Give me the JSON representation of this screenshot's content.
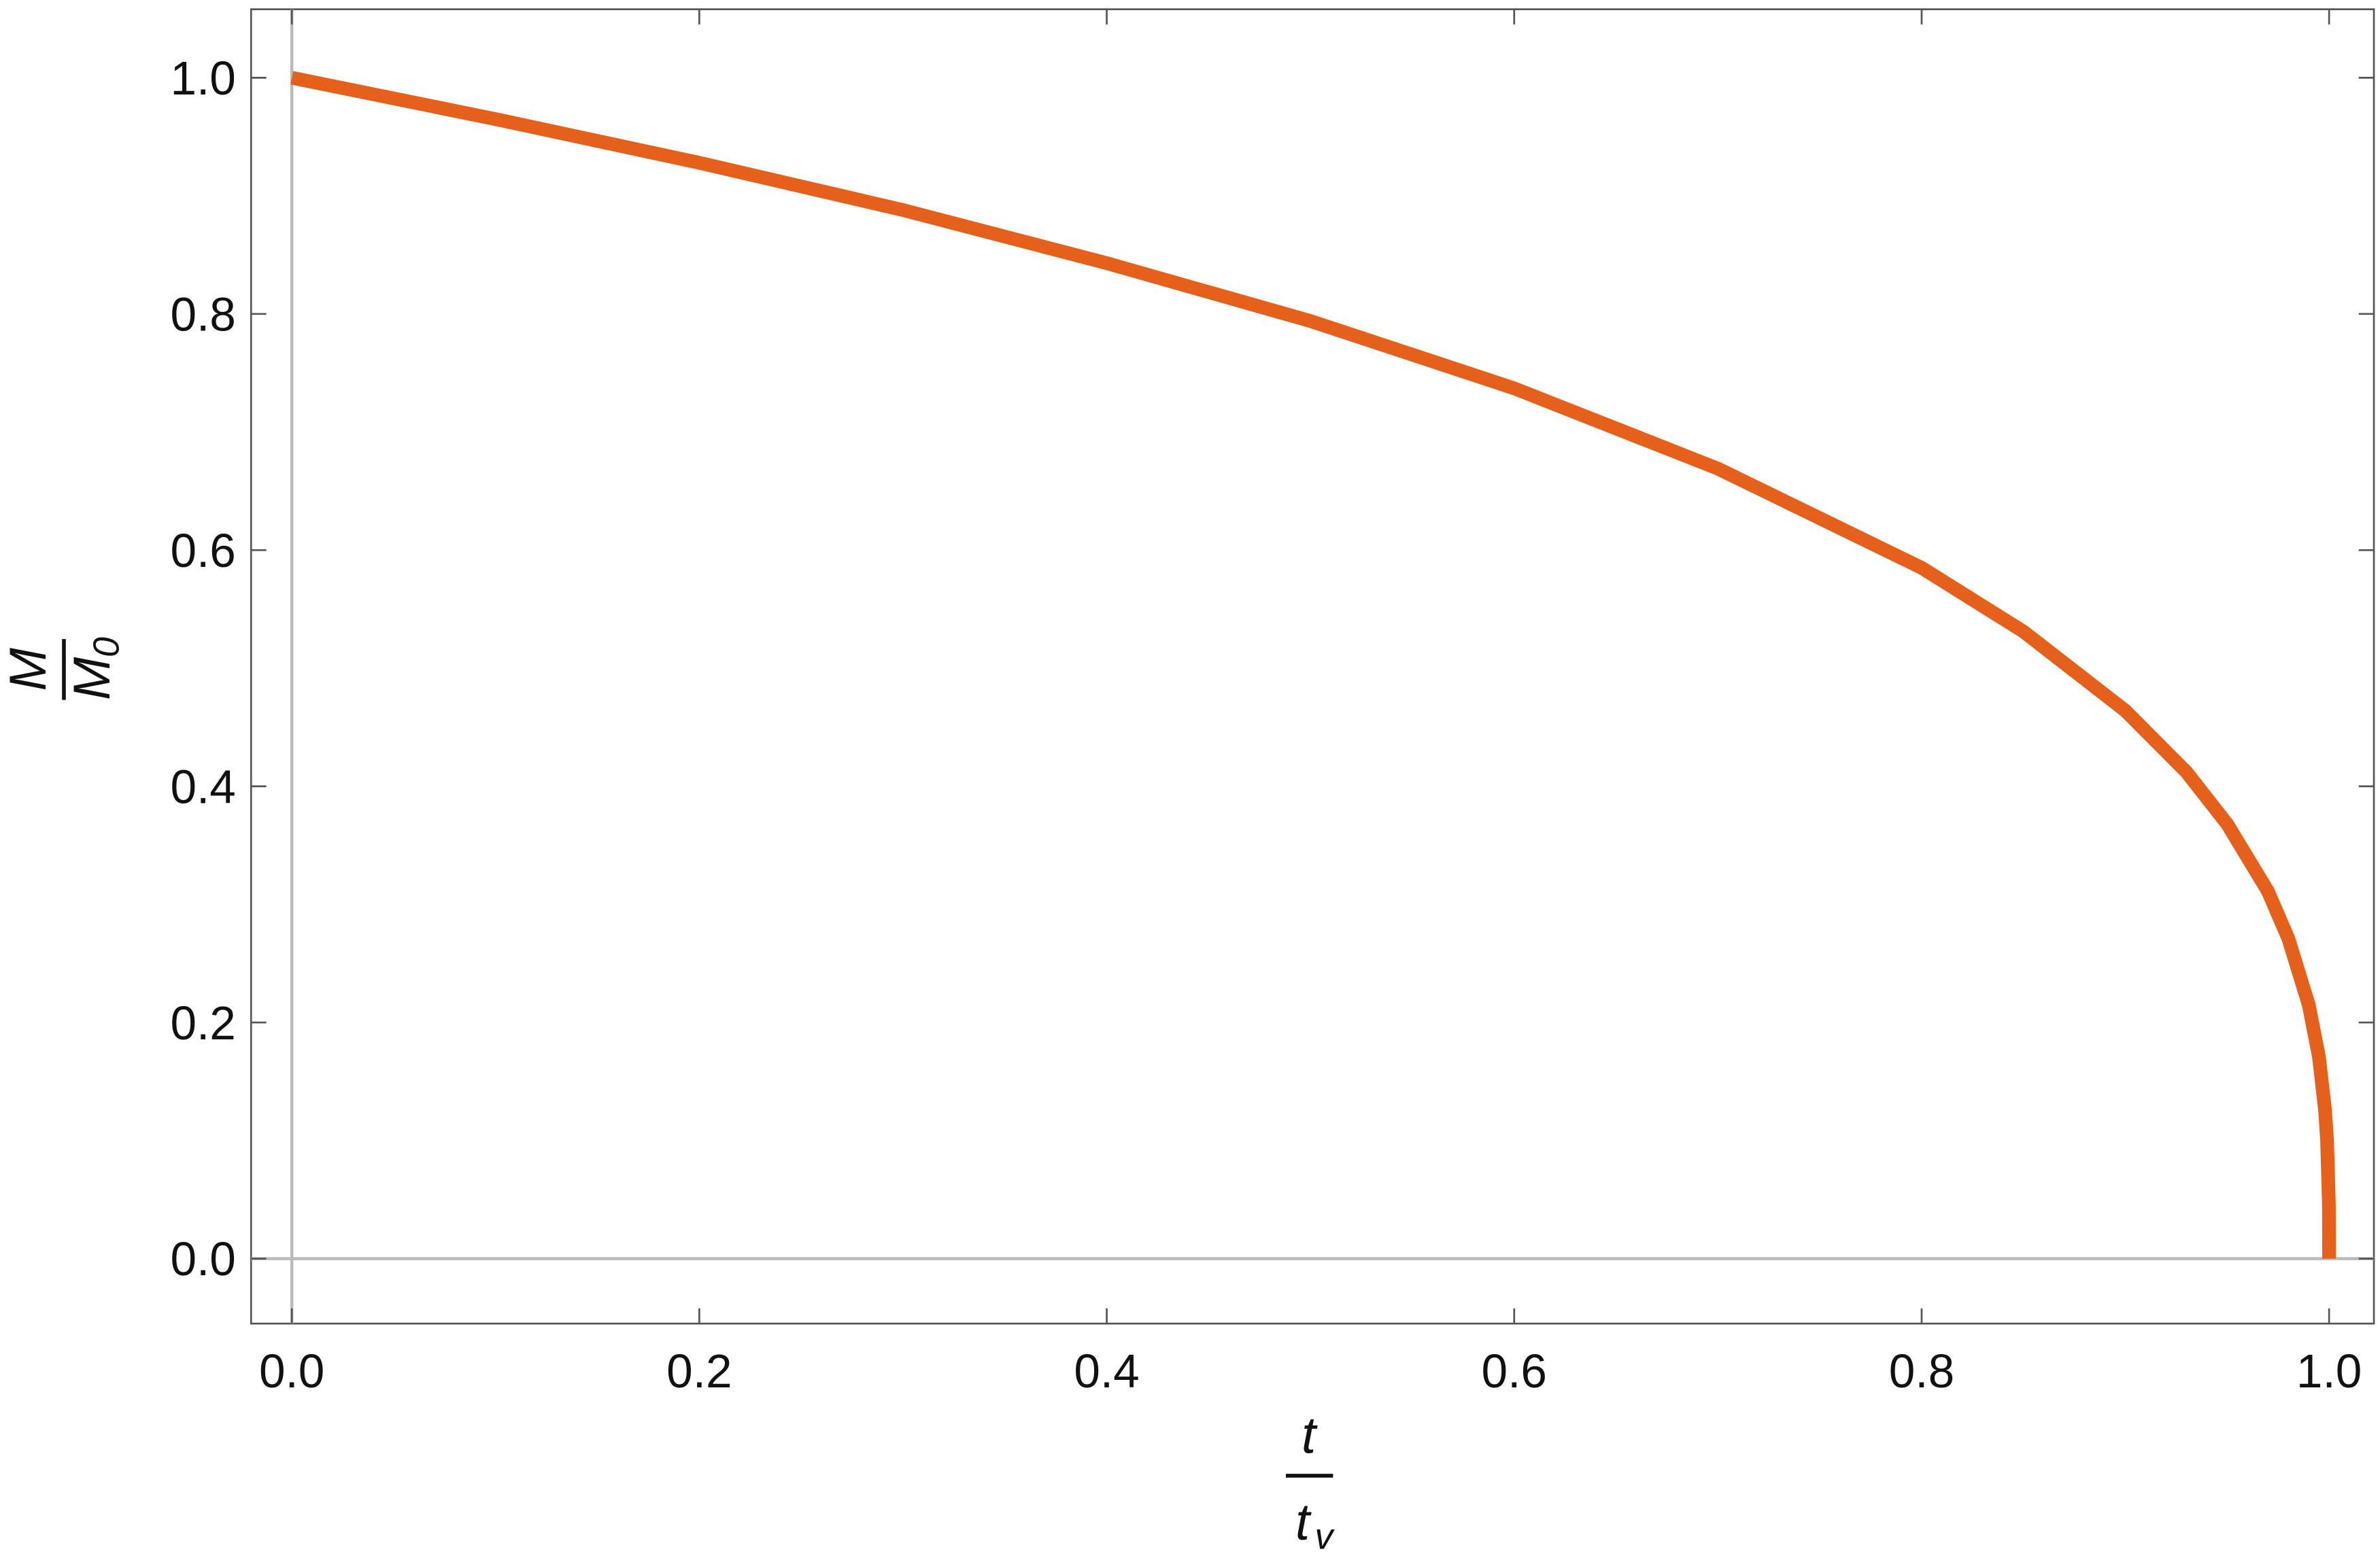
{
  "chart_data": {
    "type": "line",
    "x_label": {
      "numerator": "t",
      "denominator": "t",
      "denominator_subscript": "v"
    },
    "y_label": {
      "numerator": "M",
      "denominator": "M",
      "denominator_subscript": "0"
    },
    "x": [
      0,
      0.1,
      0.2,
      0.3,
      0.4,
      0.5,
      0.6,
      0.7,
      0.8,
      0.85,
      0.9,
      0.93,
      0.95,
      0.97,
      0.98,
      0.99,
      0.995,
      0.998,
      0.999,
      0.9999,
      1.0
    ],
    "values": [
      1,
      0.965,
      0.928,
      0.888,
      0.843,
      0.794,
      0.737,
      0.669,
      0.585,
      0.531,
      0.464,
      0.412,
      0.368,
      0.311,
      0.271,
      0.215,
      0.171,
      0.126,
      0.1,
      0.046,
      0
    ],
    "color": "#e5611b",
    "xlim": [
      -0.02,
      1.022
    ],
    "ylim": [
      -0.055,
      1.058
    ],
    "xticks": [
      {
        "value": 0,
        "label": "0.0"
      },
      0.2,
      0.4,
      0.6,
      0.8,
      {
        "value": 1,
        "label": "1.0"
      }
    ],
    "yticks": [
      {
        "value": 0,
        "label": "0.0"
      },
      0.2,
      0.4,
      0.6,
      0.8,
      {
        "value": 1,
        "label": "1.0"
      }
    ]
  }
}
